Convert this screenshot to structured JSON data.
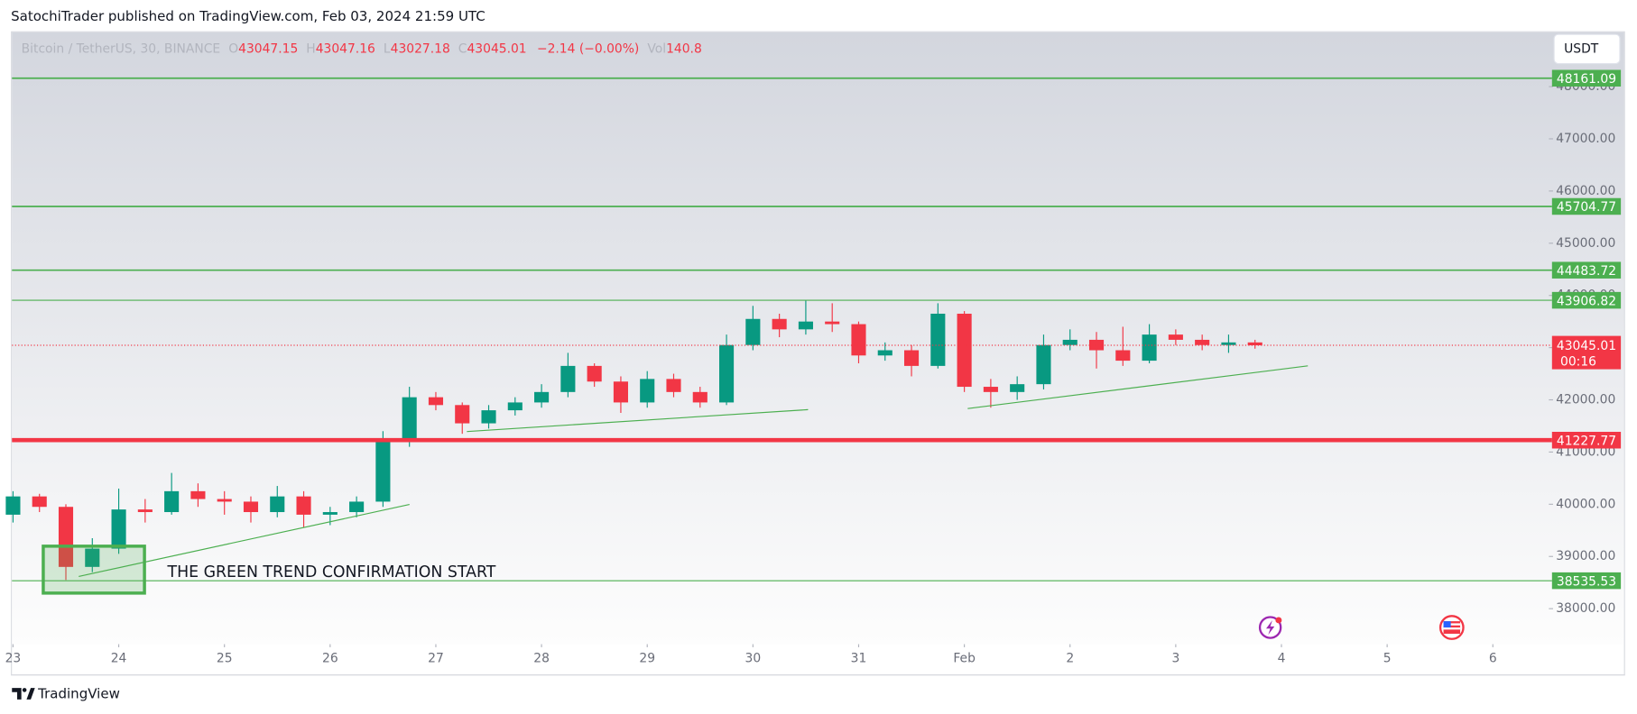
{
  "header": {
    "text": "SatochiTrader published on TradingView.com, Feb 03, 2024 21:59 UTC"
  },
  "footer": {
    "brand": "TradingView"
  },
  "chart_data": {
    "type": "candlestick",
    "legend": {
      "symbol": "Bitcoin / TetherUS, 30, BINANCE",
      "open_label": "O",
      "open": 43047.15,
      "high_label": "H",
      "high": 43047.16,
      "low_label": "L",
      "low": 43027.18,
      "close_label": "C",
      "close": 43045.01,
      "change": "−2.14 (−0.00%)",
      "volume_label": "Vol",
      "volume": 140.8
    },
    "currency": "USDT",
    "annotation": "THE GREEN TREND CONFIRMATION START",
    "x": [
      23,
      23.25,
      23.5,
      23.75,
      24,
      24.25,
      24.5,
      24.75,
      25,
      25.25,
      25.5,
      25.75,
      26,
      26.25,
      26.5,
      26.75,
      27,
      27.25,
      27.5,
      27.75,
      28,
      28.25,
      28.5,
      28.75,
      29,
      29.25,
      29.5,
      29.75,
      30,
      30.25,
      30.5,
      30.75,
      31,
      31.25,
      31.5,
      31.75,
      32,
      32.25,
      32.5,
      32.75,
      33,
      33.25,
      33.5,
      33.75,
      34,
      34.25,
      34.5,
      34.75
    ],
    "open": [
      39800,
      40150,
      39950,
      38800,
      39150,
      39900,
      39850,
      40250,
      40100,
      40050,
      39850,
      40150,
      39800,
      39850,
      40050,
      41250,
      42050,
      41900,
      41550,
      41800,
      41950,
      42150,
      42650,
      42350,
      41950,
      42400,
      42150,
      41950,
      43050,
      43550,
      43350,
      43500,
      43450,
      42850,
      42950,
      42650,
      43650,
      42250,
      42150,
      42300,
      43050,
      43150,
      42950,
      42750,
      43250,
      43150,
      43050,
      43100
    ],
    "high": [
      40250,
      40200,
      40000,
      39350,
      40300,
      40100,
      40600,
      40400,
      40250,
      40150,
      40350,
      40250,
      39950,
      40150,
      41400,
      42250,
      42150,
      41950,
      41900,
      42050,
      42300,
      42900,
      42700,
      42450,
      42550,
      42500,
      42250,
      43250,
      43800,
      43650,
      43900,
      43850,
      43500,
      43100,
      43050,
      43850,
      43700,
      42400,
      42450,
      43250,
      43350,
      43300,
      43400,
      43450,
      43350,
      43250,
      43250,
      43150
    ],
    "low": [
      39650,
      39850,
      38550,
      38700,
      39050,
      39650,
      39800,
      39950,
      39800,
      39650,
      39750,
      39550,
      39600,
      39750,
      39950,
      41100,
      41800,
      41350,
      41450,
      41700,
      41850,
      42050,
      42250,
      41750,
      41850,
      42050,
      41850,
      41900,
      42950,
      43200,
      43250,
      43300,
      42700,
      42750,
      42450,
      42600,
      42150,
      41850,
      42000,
      42200,
      42950,
      42600,
      42650,
      42700,
      43050,
      42950,
      42900,
      42980
    ],
    "close": [
      40150,
      39950,
      38800,
      39150,
      39900,
      39850,
      40250,
      40100,
      40050,
      39850,
      40150,
      39800,
      39850,
      40050,
      41250,
      42050,
      41900,
      41550,
      41800,
      41950,
      42150,
      42650,
      42350,
      41950,
      42400,
      42150,
      41950,
      43050,
      43550,
      43350,
      43500,
      43450,
      42850,
      42950,
      42650,
      43650,
      42250,
      42150,
      42300,
      43050,
      43150,
      42950,
      42750,
      43250,
      43150,
      43050,
      43100,
      43045.01
    ],
    "up_color": "#089981",
    "down_color": "#f23645",
    "xlim": [
      22.98,
      37.53
    ],
    "xticks": [
      23,
      24,
      25,
      26,
      27,
      28,
      29,
      30,
      31,
      {
        "value": 32,
        "label": "Feb"
      },
      {
        "value": 33,
        "label": "2"
      },
      {
        "value": 34,
        "label": "3"
      },
      {
        "value": 35,
        "label": "4"
      },
      {
        "value": 36,
        "label": "5"
      },
      {
        "value": 37,
        "label": "6"
      }
    ],
    "ylim": [
      37320,
      49060
    ],
    "yticks": [
      {
        "value": 38000,
        "label": "38000.00"
      },
      {
        "value": 39000,
        "label": "39000.00"
      },
      {
        "value": 40000,
        "label": "40000.00"
      },
      {
        "value": 41000,
        "label": "41000.00"
      },
      {
        "value": 42000,
        "label": "42000.00"
      },
      {
        "value": 43000,
        "label": "43000.00"
      },
      {
        "value": 44000,
        "label": "44000.00"
      },
      {
        "value": 45000,
        "label": "45000.00"
      },
      {
        "value": 46000,
        "label": "46000.00"
      },
      {
        "value": 47000,
        "label": "47000.00"
      },
      {
        "value": 48000,
        "label": "48000.00"
      }
    ],
    "levels": [
      {
        "value": 48161.09,
        "color": "#4caf50",
        "width": 1.5
      },
      {
        "value": 45704.77,
        "color": "#4caf50",
        "width": 1.5
      },
      {
        "value": 44483.72,
        "color": "#4caf50",
        "width": 1.5
      },
      {
        "value": 43906.82,
        "color": "#4caf50",
        "width": 1
      },
      {
        "value": 41227.77,
        "color": "#f23645",
        "width": 4
      },
      {
        "value": 38535.53,
        "color": "#4caf50",
        "width": 1
      }
    ],
    "last_price": {
      "value": 43045.01,
      "countdown": "00:16",
      "color": "#f23645"
    }
  }
}
